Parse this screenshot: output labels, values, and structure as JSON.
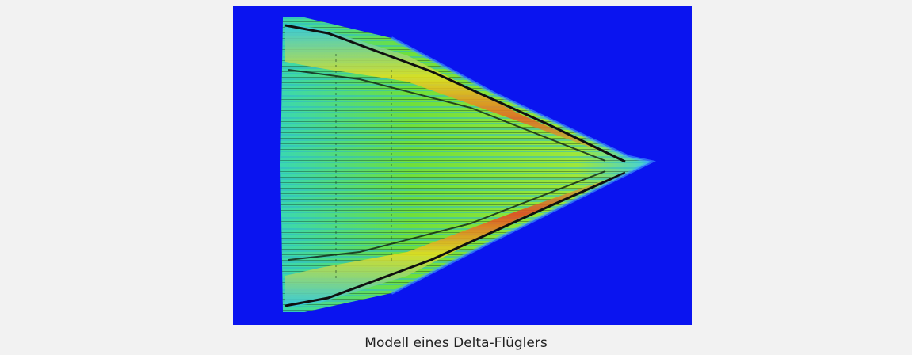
{
  "figure": {
    "caption": "Modell eines Delta-Flüglers"
  }
}
